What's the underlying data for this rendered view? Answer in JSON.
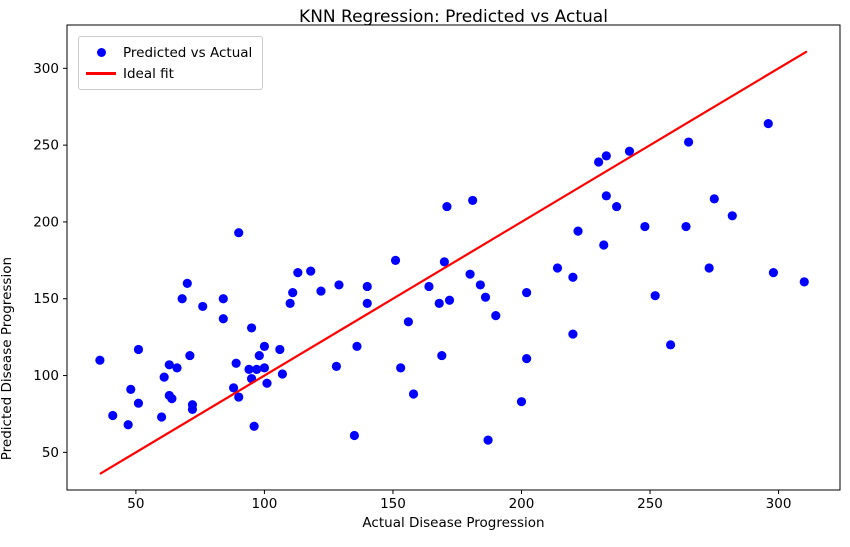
{
  "chart_data": {
    "type": "scatter",
    "title": "KNN Regression: Predicted vs Actual",
    "xlabel": "Actual Disease Progression",
    "ylabel": "Predicted Disease Progression",
    "xlim": [
      23.2,
      323.9
    ],
    "ylim": [
      25.5,
      328.2
    ],
    "xticks": [
      50,
      100,
      150,
      200,
      250,
      300
    ],
    "yticks": [
      50,
      100,
      150,
      200,
      250,
      300
    ],
    "grid": false,
    "legend_position": "upper left",
    "colors": {
      "scatter": "#0000ff",
      "line": "#ff0000",
      "spine": "#000000",
      "text": "#000000"
    },
    "legend": [
      {
        "label": "Predicted vs Actual",
        "type": "marker",
        "color": "#0000ff"
      },
      {
        "label": "Ideal fit",
        "type": "line",
        "color": "#ff0000"
      }
    ],
    "series": [
      {
        "name": "Predicted vs Actual",
        "type": "scatter",
        "color": "#0000ff",
        "points": [
          [
            36,
            110
          ],
          [
            41,
            74
          ],
          [
            47,
            68
          ],
          [
            48,
            91
          ],
          [
            51,
            117
          ],
          [
            51,
            82
          ],
          [
            60,
            73
          ],
          [
            61,
            99
          ],
          [
            63,
            107
          ],
          [
            63,
            87
          ],
          [
            64,
            85
          ],
          [
            66,
            105
          ],
          [
            68,
            150
          ],
          [
            70,
            160
          ],
          [
            71,
            113
          ],
          [
            72,
            81
          ],
          [
            72,
            78
          ],
          [
            76,
            145
          ],
          [
            84,
            150
          ],
          [
            84,
            137
          ],
          [
            88,
            92
          ],
          [
            89,
            108
          ],
          [
            90,
            193
          ],
          [
            90,
            86
          ],
          [
            94,
            104
          ],
          [
            95,
            131
          ],
          [
            95,
            98
          ],
          [
            96,
            67
          ],
          [
            97,
            104
          ],
          [
            98,
            113
          ],
          [
            100,
            105
          ],
          [
            100,
            119
          ],
          [
            101,
            95
          ],
          [
            106,
            117
          ],
          [
            107,
            101
          ],
          [
            110,
            147
          ],
          [
            111,
            154
          ],
          [
            113,
            167
          ],
          [
            118,
            168
          ],
          [
            122,
            155
          ],
          [
            128,
            106
          ],
          [
            129,
            159
          ],
          [
            135,
            61
          ],
          [
            136,
            119
          ],
          [
            140,
            158
          ],
          [
            140,
            147
          ],
          [
            151,
            175
          ],
          [
            153,
            105
          ],
          [
            156,
            135
          ],
          [
            158,
            88
          ],
          [
            164,
            158
          ],
          [
            168,
            147
          ],
          [
            169,
            113
          ],
          [
            170,
            174
          ],
          [
            171,
            210
          ],
          [
            172,
            149
          ],
          [
            180,
            166
          ],
          [
            181,
            214
          ],
          [
            184,
            159
          ],
          [
            186,
            151
          ],
          [
            187,
            58
          ],
          [
            190,
            139
          ],
          [
            200,
            83
          ],
          [
            202,
            154
          ],
          [
            202,
            111
          ],
          [
            214,
            170
          ],
          [
            220,
            164
          ],
          [
            220,
            127
          ],
          [
            222,
            194
          ],
          [
            230,
            239
          ],
          [
            232,
            185
          ],
          [
            233,
            243
          ],
          [
            233,
            217
          ],
          [
            237,
            210
          ],
          [
            242,
            246
          ],
          [
            248,
            197
          ],
          [
            252,
            152
          ],
          [
            258,
            120
          ],
          [
            264,
            197
          ],
          [
            265,
            252
          ],
          [
            273,
            170
          ],
          [
            275,
            215
          ],
          [
            282,
            204
          ],
          [
            296,
            264
          ],
          [
            298,
            167
          ],
          [
            310,
            161
          ]
        ]
      },
      {
        "name": "Ideal fit",
        "type": "line",
        "color": "#ff0000",
        "points": [
          [
            36.3,
            36.3
          ],
          [
            310.7,
            310.7
          ]
        ]
      }
    ]
  }
}
